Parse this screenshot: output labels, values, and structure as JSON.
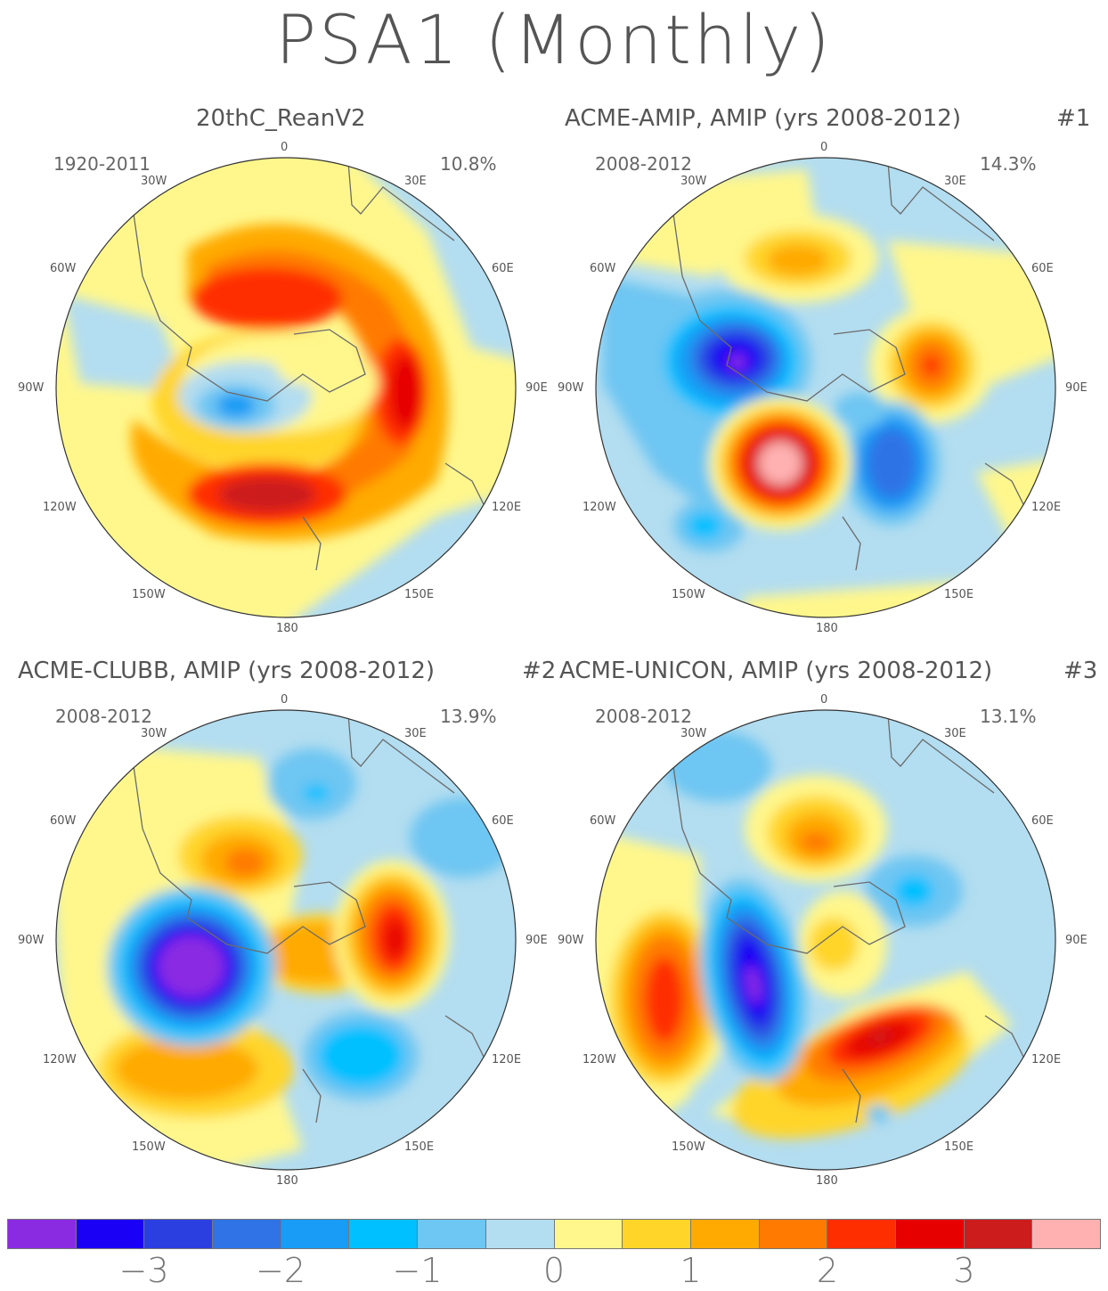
{
  "title": "PSA1 (Monthly)",
  "colorbar": {
    "colors": [
      "#8a2be2",
      "#1a00f5",
      "#2b3fe0",
      "#2f73e6",
      "#199cf5",
      "#00c0ff",
      "#6ec6f2",
      "#b3ddf0",
      "#fff78c",
      "#ffd52a",
      "#ffaa00",
      "#ff7a00",
      "#ff2e00",
      "#e60000",
      "#cc1c1c",
      "#ffb0b0"
    ],
    "labels": [
      "−3",
      "−2",
      "−1",
      "0",
      "1",
      "2",
      "3"
    ]
  },
  "lon_labels": {
    "n0": "0",
    "n30w": "30W",
    "n30e": "30E",
    "n60w": "60W",
    "n60e": "60E",
    "n90w": "90W",
    "n90e": "90E",
    "n120w": "120W",
    "n120e": "120E",
    "n150w": "150W",
    "n150e": "150E",
    "n180": "180"
  },
  "panels": [
    {
      "title": "20thC_ReanV2",
      "period": "1920-2011",
      "pct": "10.8%",
      "num": ""
    },
    {
      "title": "ACME-AMIP, AMIP (yrs 2008-2012)",
      "period": "2008-2012",
      "pct": "14.3%",
      "num": "#1"
    },
    {
      "title": "ACME-CLUBB, AMIP (yrs 2008-2012)",
      "period": "2008-2012",
      "pct": "13.9%",
      "num": "#2"
    },
    {
      "title": "ACME-UNICON, AMIP (yrs 2008-2012)",
      "period": "2008-2012",
      "pct": "13.1%",
      "num": "#3"
    }
  ]
}
